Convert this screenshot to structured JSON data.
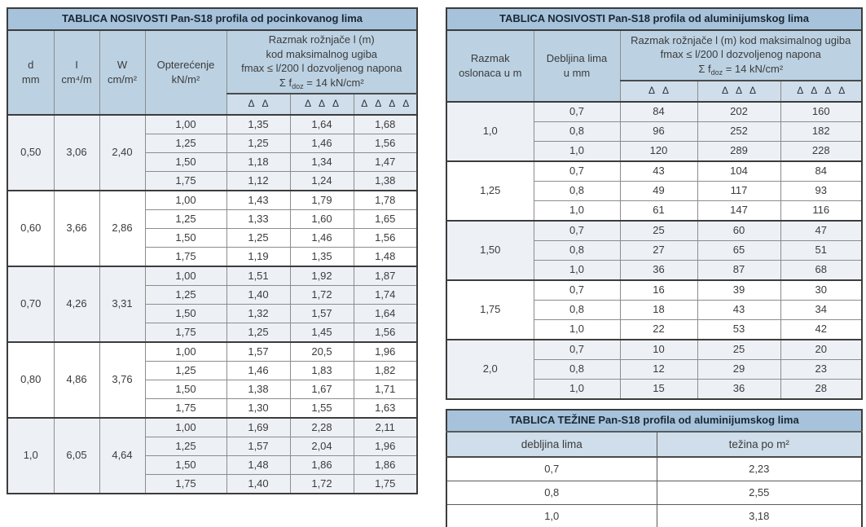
{
  "colors": {
    "title_bg": "#a6c3db",
    "header_bg": "#bcd2e3",
    "subheader_bg": "#cfdeea",
    "stripe_bg": "#edf1f6",
    "border_dark": "#3c3c3c",
    "border_grey": "#8c8c8c",
    "text": "#3b3b3b"
  },
  "left_table": {
    "title": "TABLICA NOSIVOSTI Pan-S18 profila od pocinkovanog lima",
    "col_d": {
      "label": "d",
      "unit": "mm"
    },
    "col_i": {
      "label": "I",
      "unit": "cm⁴/m"
    },
    "col_w": {
      "label": "W",
      "unit": "cm/m²"
    },
    "col_load": {
      "label": "Opterećenje",
      "unit": "kN/m²"
    },
    "span_header_lines": [
      "Razmak rožnjače l (m)",
      "kod maksimalnog ugiba",
      "fmax ≤ l/200 l dozvoljenog napona"
    ],
    "sigma": {
      "prefix": "Σ f",
      "sub": "doz",
      "suffix": " = 14 kN/cm²"
    },
    "delta2": "Δ Δ",
    "delta3": "Δ Δ Δ",
    "delta4": "Δ Δ Δ Δ",
    "groups": [
      {
        "d": "0,50",
        "i": "3,06",
        "w": "2,40",
        "rows": [
          [
            "1,00",
            "1,35",
            "1,64",
            "1,68"
          ],
          [
            "1,25",
            "1,25",
            "1,46",
            "1,56"
          ],
          [
            "1,50",
            "1,18",
            "1,34",
            "1,47"
          ],
          [
            "1,75",
            "1,12",
            "1,24",
            "1,38"
          ]
        ]
      },
      {
        "d": "0,60",
        "i": "3,66",
        "w": "2,86",
        "rows": [
          [
            "1,00",
            "1,43",
            "1,79",
            "1,78"
          ],
          [
            "1,25",
            "1,33",
            "1,60",
            "1,65"
          ],
          [
            "1,50",
            "1,25",
            "1,46",
            "1,56"
          ],
          [
            "1,75",
            "1,19",
            "1,35",
            "1,48"
          ]
        ]
      },
      {
        "d": "0,70",
        "i": "4,26",
        "w": "3,31",
        "rows": [
          [
            "1,00",
            "1,51",
            "1,92",
            "1,87"
          ],
          [
            "1,25",
            "1,40",
            "1,72",
            "1,74"
          ],
          [
            "1,50",
            "1,32",
            "1,57",
            "1,64"
          ],
          [
            "1,75",
            "1,25",
            "1,45",
            "1,56"
          ]
        ]
      },
      {
        "d": "0,80",
        "i": "4,86",
        "w": "3,76",
        "rows": [
          [
            "1,00",
            "1,57",
            "20,5",
            "1,96"
          ],
          [
            "1,25",
            "1,46",
            "1,83",
            "1,82"
          ],
          [
            "1,50",
            "1,38",
            "1,67",
            "1,71"
          ],
          [
            "1,75",
            "1,30",
            "1,55",
            "1,63"
          ]
        ]
      },
      {
        "d": "1,0",
        "i": "6,05",
        "w": "4,64",
        "rows": [
          [
            "1,00",
            "1,69",
            "2,28",
            "2,11"
          ],
          [
            "1,25",
            "1,57",
            "2,04",
            "1,96"
          ],
          [
            "1,50",
            "1,48",
            "1,86",
            "1,86"
          ],
          [
            "1,75",
            "1,40",
            "1,72",
            "1,75"
          ]
        ]
      }
    ]
  },
  "right_table": {
    "title": "TABLICA NOSIVOSTI Pan-S18 profila od aluminijumskog lima",
    "col_span": {
      "line1": "Razmak",
      "line2": "oslonaca u m"
    },
    "col_thickness": {
      "line1": "Debljina lima",
      "line2": "u mm"
    },
    "span_header_lines": [
      "Razmak rožnjače l (m) kod maksimalnog ugiba",
      "fmax ≤ l/200 l dozvoljenog napona"
    ],
    "sigma": {
      "prefix": "Σ f",
      "sub": "doz",
      "suffix": " = 14 kN/cm²"
    },
    "delta2": "Δ Δ",
    "delta3": "Δ Δ Δ",
    "delta4": "Δ Δ Δ Δ",
    "groups": [
      {
        "span": "1,0",
        "rows": [
          [
            "0,7",
            "84",
            "202",
            "160"
          ],
          [
            "0,8",
            "96",
            "252",
            "182"
          ],
          [
            "1,0",
            "120",
            "289",
            "228"
          ]
        ]
      },
      {
        "span": "1,25",
        "rows": [
          [
            "0,7",
            "43",
            "104",
            "84"
          ],
          [
            "0,8",
            "49",
            "117",
            "93"
          ],
          [
            "1,0",
            "61",
            "147",
            "116"
          ]
        ]
      },
      {
        "span": "1,50",
        "rows": [
          [
            "0,7",
            "25",
            "60",
            "47"
          ],
          [
            "0,8",
            "27",
            "65",
            "51"
          ],
          [
            "1,0",
            "36",
            "87",
            "68"
          ]
        ]
      },
      {
        "span": "1,75",
        "rows": [
          [
            "0,7",
            "16",
            "39",
            "30"
          ],
          [
            "0,8",
            "18",
            "43",
            "34"
          ],
          [
            "1,0",
            "22",
            "53",
            "42"
          ]
        ]
      },
      {
        "span": "2,0",
        "rows": [
          [
            "0,7",
            "10",
            "25",
            "20"
          ],
          [
            "0,8",
            "12",
            "29",
            "23"
          ],
          [
            "1,0",
            "15",
            "36",
            "28"
          ]
        ]
      }
    ]
  },
  "weight_table": {
    "title": "TABLICA TEŽINE Pan-S18 profila od aluminijumskog lima",
    "col1": "debljina lima",
    "col2": "težina po m²",
    "rows": [
      [
        "0,7",
        "2,23"
      ],
      [
        "0,8",
        "2,55"
      ],
      [
        "1,0",
        "3,18"
      ]
    ]
  }
}
